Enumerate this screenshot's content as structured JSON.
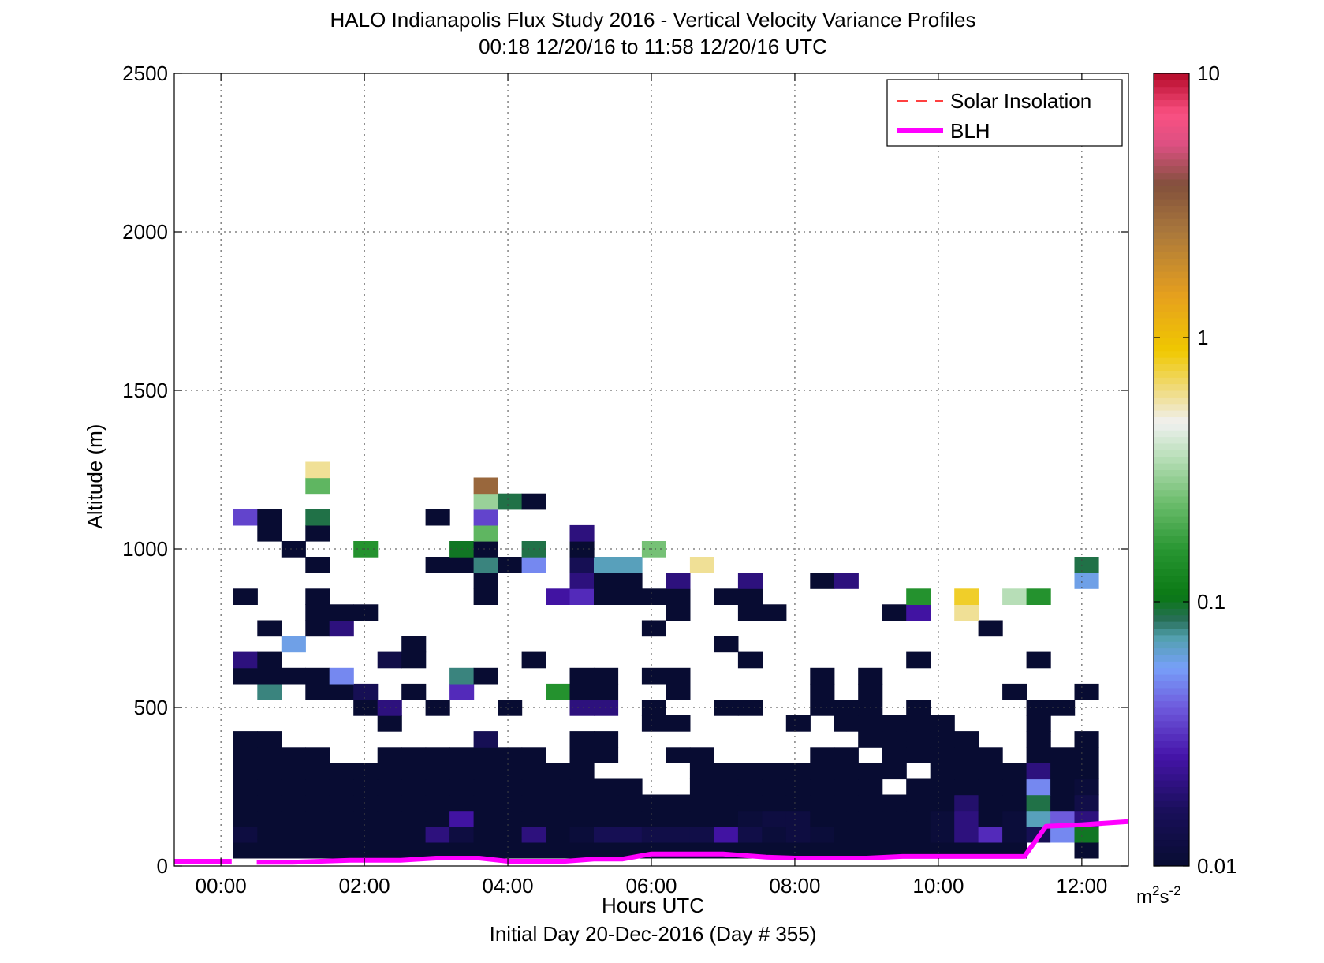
{
  "chart_data": {
    "type": "heatmap",
    "title": "HALO Indianapolis Flux Study 2016 - Vertical Velocity Variance Profiles",
    "subtitle": "00:18 12/20/16 to 11:58 12/20/16  UTC",
    "xlabel": "Hours UTC",
    "xlabel2": "Initial Day 20-Dec-2016 (Day # 355)",
    "ylabel": "Altitude (m)",
    "xlim": [
      -0.65,
      12.65
    ],
    "ylim": [
      0,
      2500
    ],
    "grid": true,
    "x_ticks": [
      0,
      2,
      4,
      6,
      8,
      10,
      12
    ],
    "x_tick_labels": [
      "00:00",
      "02:00",
      "04:00",
      "06:00",
      "08:00",
      "10:00",
      "12:00"
    ],
    "y_ticks": [
      0,
      500,
      1000,
      1500,
      2000,
      2500
    ],
    "y_tick_labels": [
      "0",
      "500",
      "1000",
      "1500",
      "2000",
      "2500"
    ],
    "colorbar": {
      "scale": "log",
      "range": [
        0.01,
        10
      ],
      "ticks": [
        0.01,
        0.1,
        1,
        10
      ],
      "tick_labels": [
        "0.01",
        "0.1",
        "1",
        "10"
      ],
      "unit_base": "m",
      "unit_sup1": "2",
      "unit_mid": "s",
      "unit_sup2": "-2"
    },
    "legend": {
      "placement": "top-right",
      "entries": [
        {
          "label": "Solar Insolation",
          "color": "#ff0000",
          "style": "dashed"
        },
        {
          "label": "BLH",
          "color": "#ff00ff",
          "style": "solid"
        }
      ]
    },
    "series": [
      {
        "name": "BLH",
        "color": "#ff00ff",
        "segments": [
          [
            [
              -0.65,
              15
            ],
            [
              0.15,
              15
            ]
          ],
          [
            [
              0.5,
              12
            ],
            [
              1.0,
              12
            ],
            [
              1.8,
              18
            ],
            [
              2.5,
              18
            ],
            [
              3.0,
              25
            ],
            [
              3.6,
              25
            ],
            [
              4.0,
              15
            ],
            [
              4.8,
              15
            ],
            [
              5.2,
              22
            ],
            [
              5.6,
              22
            ],
            [
              6.0,
              38
            ],
            [
              7.0,
              38
            ],
            [
              7.6,
              28
            ],
            [
              8.0,
              25
            ],
            [
              9.0,
              25
            ],
            [
              9.5,
              30
            ],
            [
              10.5,
              30
            ],
            [
              11.2,
              30
            ],
            [
              11.5,
              125
            ],
            [
              12.0,
              130
            ],
            [
              12.65,
              140
            ]
          ]
        ]
      }
    ],
    "cells": {
      "x_centers": [
        0.34,
        0.67,
        1.0,
        1.34,
        1.67,
        2.0,
        2.34,
        2.67,
        3.0,
        3.34,
        3.67,
        4.0,
        4.34,
        4.67,
        5.0,
        5.34,
        5.67,
        6.0,
        6.34,
        6.67,
        7.0,
        7.34,
        7.67,
        8.0,
        8.34,
        8.67,
        9.0,
        9.34,
        9.67,
        10.0,
        10.34,
        10.67,
        11.0,
        11.34,
        11.67,
        12.0
      ],
      "y_bins": "low",
      "values": [
        [
          11.34,
          30,
          0.3
        ],
        [
          11.34,
          50,
          0.18
        ],
        [
          11.67,
          50,
          0.09
        ],
        [
          11.34,
          75,
          0.04
        ],
        [
          11.67,
          75,
          0.1
        ],
        [
          11.67,
          100,
          0.03
        ],
        [
          10.34,
          75,
          0.03
        ]
      ]
    },
    "heatmap": {
      "x_start": 0.34,
      "x_step": 0.335,
      "y_step": 50,
      "rows": [
        {
          "y": 50,
          "x_index": [
            0,
            1,
            2,
            3,
            4,
            5,
            6,
            7,
            8,
            9,
            10,
            11,
            12,
            13,
            14,
            15,
            16,
            17,
            18,
            19,
            20,
            21,
            22,
            23,
            24,
            25,
            26,
            27,
            28,
            29,
            30,
            31,
            32,
            35
          ],
          "v": [
            0.01,
            0.01,
            0.01,
            0.01,
            0.01,
            0.01,
            0.01,
            0.01,
            0.01,
            0.01,
            0.01,
            0.01,
            0.01,
            0.01,
            0.01,
            0.01,
            0.01,
            0.01,
            0.01,
            0.01,
            0.01,
            0.01,
            0.01,
            0.01,
            0.01,
            0.01,
            0.01,
            0.01,
            0.01,
            0.01,
            0.01,
            0.01,
            0.01,
            0.01
          ]
        },
        {
          "y": 100,
          "x_index": [
            0,
            1,
            2,
            3,
            4,
            5,
            6,
            7,
            8,
            9,
            10,
            11,
            12,
            13,
            14,
            15,
            16,
            17,
            18,
            19,
            20,
            21,
            22,
            23,
            24,
            25,
            26,
            27,
            28,
            29,
            30,
            31,
            32,
            33,
            34,
            35
          ],
          "v": [
            0.012,
            0.01,
            0.01,
            0.01,
            0.01,
            0.01,
            0.01,
            0.01,
            0.02,
            0.012,
            0.01,
            0.01,
            0.02,
            0.01,
            0.011,
            0.015,
            0.015,
            0.013,
            0.013,
            0.013,
            0.025,
            0.013,
            0.011,
            0.012,
            0.011,
            0.01,
            0.01,
            0.01,
            0.01,
            0.011,
            0.02,
            0.03,
            0.011,
            0.015,
            0.05,
            0.1
          ]
        },
        {
          "y": 150,
          "x_index": [
            0,
            1,
            2,
            3,
            4,
            5,
            6,
            7,
            8,
            9,
            10,
            11,
            12,
            13,
            14,
            15,
            16,
            17,
            18,
            19,
            20,
            21,
            22,
            23,
            24,
            25,
            26,
            27,
            28,
            29,
            30,
            31,
            32,
            33,
            34,
            35
          ],
          "v": [
            0.01,
            0.01,
            0.01,
            0.01,
            0.01,
            0.01,
            0.01,
            0.01,
            0.01,
            0.025,
            0.01,
            0.01,
            0.01,
            0.01,
            0.01,
            0.01,
            0.01,
            0.01,
            0.01,
            0.01,
            0.01,
            0.011,
            0.012,
            0.012,
            0.01,
            0.01,
            0.01,
            0.01,
            0.01,
            0.011,
            0.02,
            0.01,
            0.011,
            0.07,
            0.04,
            0.02
          ]
        },
        {
          "y": 200,
          "x_index": [
            0,
            1,
            2,
            3,
            4,
            5,
            6,
            7,
            8,
            9,
            10,
            11,
            12,
            13,
            14,
            15,
            16,
            17,
            18,
            19,
            20,
            21,
            22,
            23,
            24,
            25,
            26,
            27,
            28,
            29,
            30,
            31,
            32,
            33,
            34,
            35
          ],
          "v": [
            0.01,
            0.01,
            0.01,
            0.01,
            0.01,
            0.01,
            0.01,
            0.01,
            0.01,
            0.01,
            0.01,
            0.01,
            0.01,
            0.01,
            0.01,
            0.01,
            0.01,
            0.01,
            0.01,
            0.01,
            0.01,
            0.01,
            0.01,
            0.01,
            0.01,
            0.01,
            0.01,
            0.01,
            0.01,
            0.01,
            0.018,
            0.01,
            0.01,
            0.09,
            0.01,
            0.013
          ]
        },
        {
          "y": 250,
          "x_index": [
            0,
            1,
            2,
            3,
            4,
            5,
            6,
            7,
            8,
            9,
            10,
            11,
            12,
            13,
            14,
            15,
            16,
            19,
            20,
            21,
            22,
            23,
            24,
            25,
            26,
            28,
            29,
            30,
            31,
            32,
            33,
            34,
            35
          ],
          "v": [
            0.01,
            0.01,
            0.01,
            0.01,
            0.01,
            0.01,
            0.01,
            0.01,
            0.01,
            0.01,
            0.01,
            0.01,
            0.01,
            0.01,
            0.01,
            0.01,
            0.01,
            0.01,
            0.01,
            0.01,
            0.01,
            0.01,
            0.01,
            0.01,
            0.01,
            0.01,
            0.01,
            0.01,
            0.01,
            0.01,
            0.05,
            0.01,
            0.011
          ]
        },
        {
          "y": 300,
          "x_index": [
            0,
            1,
            2,
            3,
            4,
            5,
            6,
            7,
            8,
            9,
            10,
            11,
            12,
            13,
            14,
            19,
            20,
            21,
            22,
            23,
            24,
            25,
            26,
            27,
            29,
            30,
            31,
            32,
            33,
            34,
            35
          ],
          "v": [
            0.01,
            0.01,
            0.01,
            0.01,
            0.01,
            0.01,
            0.01,
            0.01,
            0.01,
            0.01,
            0.01,
            0.01,
            0.01,
            0.01,
            0.01,
            0.01,
            0.01,
            0.01,
            0.01,
            0.01,
            0.01,
            0.01,
            0.01,
            0.01,
            0.01,
            0.01,
            0.01,
            0.01,
            0.02,
            0.01,
            0.01
          ]
        },
        {
          "y": 350,
          "x_index": [
            0,
            1,
            2,
            3,
            6,
            7,
            8,
            9,
            10,
            11,
            12,
            14,
            15,
            18,
            19,
            24,
            25,
            27,
            28,
            29,
            30,
            31,
            33,
            34,
            35
          ],
          "v": [
            0.01,
            0.01,
            0.01,
            0.01,
            0.01,
            0.01,
            0.01,
            0.01,
            0.01,
            0.01,
            0.01,
            0.01,
            0.01,
            0.01,
            0.01,
            0.01,
            0.01,
            0.01,
            0.01,
            0.01,
            0.01,
            0.01,
            0.01,
            0.01,
            0.01
          ]
        },
        {
          "y": 400,
          "x_index": [
            0,
            1,
            14,
            15,
            26,
            27,
            28,
            29,
            30,
            33,
            35
          ],
          "v": [
            0.01,
            0.01,
            0.01,
            0.01,
            0.01,
            0.01,
            0.01,
            0.01,
            0.01,
            0.01,
            0.01
          ]
        },
        {
          "y": 400,
          "x_index": [
            10
          ],
          "v": [
            0.015
          ]
        },
        {
          "y": 450,
          "x_index": [
            6,
            17,
            18,
            23,
            25,
            26,
            27,
            28,
            29,
            33
          ],
          "v": [
            0.01,
            0.01,
            0.01,
            0.01,
            0.01,
            0.01,
            0.01,
            0.01,
            0.01,
            0.01
          ]
        },
        {
          "y": 500,
          "x_index": [
            5,
            6,
            8,
            11,
            14,
            15,
            17,
            20,
            21,
            24,
            25,
            26,
            28,
            33,
            34
          ],
          "v": [
            0.01,
            0.02,
            0.01,
            0.01,
            0.02,
            0.02,
            0.01,
            0.01,
            0.01,
            0.01,
            0.01,
            0.01,
            0.01,
            0.01,
            0.01
          ]
        },
        {
          "y": 550,
          "x_index": [
            1,
            3,
            4,
            5,
            7,
            9,
            13,
            14,
            15,
            18,
            24,
            26,
            32,
            35
          ],
          "v": [
            0.08,
            0.01,
            0.01,
            0.015,
            0.01,
            0.03,
            0.15,
            0.01,
            0.01,
            0.01,
            0.01,
            0.01,
            0.01,
            0.01
          ]
        },
        {
          "y": 600,
          "x_index": [
            0,
            1,
            2,
            3,
            4,
            9,
            10,
            14,
            15,
            17,
            18,
            24,
            26
          ],
          "v": [
            0.01,
            0.01,
            0.01,
            0.01,
            0.05,
            0.08,
            0.01,
            0.01,
            0.01,
            0.01,
            0.01,
            0.01,
            0.01
          ]
        },
        {
          "y": 650,
          "x_index": [
            0,
            1,
            6,
            7,
            12,
            21,
            28,
            33
          ],
          "v": [
            0.02,
            0.01,
            0.013,
            0.01,
            0.01,
            0.01,
            0.01,
            0.01
          ]
        },
        {
          "y": 700,
          "x_index": [
            2,
            7,
            20
          ],
          "v": [
            0.06,
            0.01,
            0.01
          ]
        },
        {
          "y": 750,
          "x_index": [
            1,
            3,
            4,
            17,
            31
          ],
          "v": [
            0.01,
            0.01,
            0.02,
            0.01,
            0.01
          ]
        },
        {
          "y": 800,
          "x_index": [
            3,
            4,
            5,
            18,
            21,
            22,
            27,
            28,
            30
          ],
          "v": [
            0.01,
            0.01,
            0.01,
            0.01,
            0.01,
            0.01,
            0.01,
            0.025,
            0.6
          ]
        },
        {
          "y": 850,
          "x_index": [
            0,
            3,
            10,
            13,
            14,
            15,
            16,
            17,
            18,
            20,
            21,
            28,
            30,
            32,
            33
          ],
          "v": [
            0.01,
            0.01,
            0.01,
            0.025,
            0.03,
            0.01,
            0.01,
            0.01,
            0.01,
            0.01,
            0.01,
            0.15,
            0.8,
            0.35,
            0.15
          ]
        },
        {
          "y": 900,
          "x_index": [
            10,
            14,
            15,
            16,
            18,
            21,
            24,
            25,
            35
          ],
          "v": [
            0.01,
            0.02,
            0.01,
            0.01,
            0.02,
            0.02,
            0.01,
            0.02,
            0.06
          ]
        },
        {
          "y": 950,
          "x_index": [
            3,
            8,
            9,
            10,
            11,
            12,
            14,
            15,
            16,
            19,
            35
          ],
          "v": [
            0.01,
            0.01,
            0.01,
            0.08,
            0.01,
            0.05,
            0.015,
            0.07,
            0.07,
            0.6,
            0.09
          ]
        },
        {
          "y": 1000,
          "x_index": [
            2,
            5,
            9,
            10,
            12,
            14,
            17
          ],
          "v": [
            0.01,
            0.15,
            0.1,
            0.01,
            0.09,
            0.01,
            0.25
          ]
        },
        {
          "y": 1050,
          "x_index": [
            1,
            3,
            10,
            14
          ],
          "v": [
            0.01,
            0.01,
            0.22,
            0.02
          ]
        },
        {
          "y": 1100,
          "x_index": [
            0,
            1,
            3,
            8,
            10
          ],
          "v": [
            0.035,
            0.01,
            0.09,
            0.01,
            0.035
          ]
        },
        {
          "y": 1150,
          "x_index": [
            10,
            11,
            12
          ],
          "v": [
            0.3,
            0.09,
            0.01
          ]
        },
        {
          "y": 1200,
          "x_index": [
            3,
            10
          ],
          "v": [
            0.22,
            3
          ]
        },
        {
          "y": 1250,
          "x_index": [
            3
          ],
          "v": [
            0.6
          ]
        }
      ]
    }
  }
}
